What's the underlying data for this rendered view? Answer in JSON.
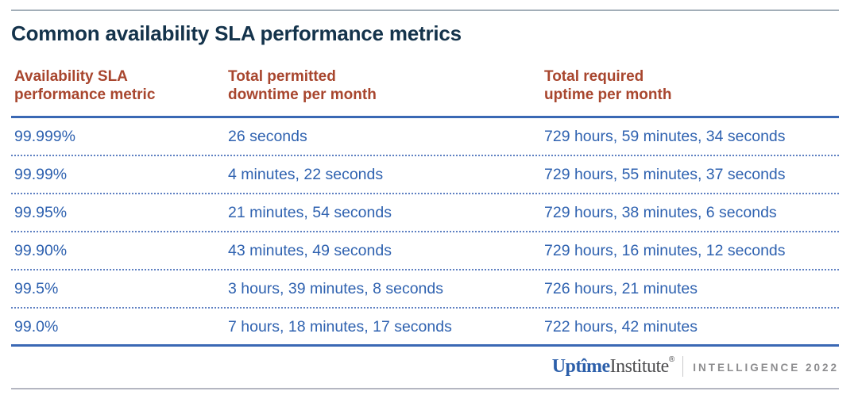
{
  "title": "Common availability SLA performance metrics",
  "chart_data": {
    "type": "table",
    "title": "Common availability SLA performance metrics",
    "columns": [
      {
        "line1": "Availability SLA",
        "line2": "performance metric"
      },
      {
        "line1": "Total permitted",
        "line2": "downtime per month"
      },
      {
        "line1": "Total required",
        "line2": "uptime per month"
      }
    ],
    "rows": [
      {
        "metric": "99.999%",
        "downtime": "26 seconds",
        "uptime": "729 hours, 59 minutes, 34 seconds"
      },
      {
        "metric": "99.99%",
        "downtime": "4 minutes, 22 seconds",
        "uptime": "729 hours, 55 minutes, 37 seconds"
      },
      {
        "metric": "99.95%",
        "downtime": "21 minutes, 54 seconds",
        "uptime": "729 hours, 38 minutes, 6 seconds"
      },
      {
        "metric": "99.90%",
        "downtime": "43 minutes, 49 seconds",
        "uptime": "729 hours, 16 minutes, 12 seconds"
      },
      {
        "metric": "99.5%",
        "downtime": "3 hours, 39 minutes, 8 seconds",
        "uptime": "726 hours, 21 minutes"
      },
      {
        "metric": "99.0%",
        "downtime": "7 hours, 18 minutes, 17 seconds",
        "uptime": "722 hours, 42 minutes"
      }
    ],
    "layout": {
      "grid": "dotted-row-separators",
      "legend": "none"
    }
  },
  "footer": {
    "brand_part1": "Uptîme",
    "brand_part2": "Institute",
    "registered_mark": "®",
    "suffix": "INTELLIGENCE 2022"
  },
  "colors": {
    "title_navy": "#14334b",
    "header_rust": "#a8462e",
    "data_blue": "#2f62b0",
    "rule_blue": "#3a68b4",
    "dotted_blue": "#5e80c2",
    "rule_gray_top": "#a2aeb8",
    "rule_gray_bottom": "#b4b6c1",
    "logo_blue": "#2c5faa",
    "logo_dark_gray": "#4d4d4f",
    "logo_light_gray": "#8d8d8f"
  }
}
